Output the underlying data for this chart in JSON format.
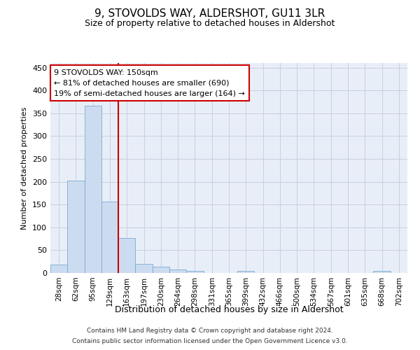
{
  "title": "9, STOVOLDS WAY, ALDERSHOT, GU11 3LR",
  "subtitle": "Size of property relative to detached houses in Aldershot",
  "xlabel": "Distribution of detached houses by size in Aldershot",
  "ylabel": "Number of detached properties",
  "footer_line1": "Contains HM Land Registry data © Crown copyright and database right 2024.",
  "footer_line2": "Contains public sector information licensed under the Open Government Licence v3.0.",
  "bar_labels": [
    "28sqm",
    "62sqm",
    "95sqm",
    "129sqm",
    "163sqm",
    "197sqm",
    "230sqm",
    "264sqm",
    "298sqm",
    "331sqm",
    "365sqm",
    "399sqm",
    "432sqm",
    "466sqm",
    "500sqm",
    "534sqm",
    "567sqm",
    "601sqm",
    "635sqm",
    "668sqm",
    "702sqm"
  ],
  "bar_values": [
    18,
    202,
    367,
    156,
    77,
    20,
    14,
    7,
    5,
    0,
    0,
    4,
    0,
    0,
    0,
    0,
    0,
    0,
    0,
    4,
    0
  ],
  "bar_color": "#ccdcf0",
  "bar_edge_color": "#7aaad0",
  "grid_color": "#c8d0df",
  "background_color": "#e8eef8",
  "vline_color": "#cc0000",
  "annotation_line1": "9 STOVOLDS WAY: 150sqm",
  "annotation_line2": "← 81% of detached houses are smaller (690)",
  "annotation_line3": "19% of semi-detached houses are larger (164) →",
  "annotation_box_color": "#ffffff",
  "annotation_box_edge": "#cc0000",
  "ylim": [
    0,
    460
  ],
  "yticks": [
    0,
    50,
    100,
    150,
    200,
    250,
    300,
    350,
    400,
    450
  ],
  "title_fontsize": 11,
  "subtitle_fontsize": 9,
  "ylabel_fontsize": 8,
  "xlabel_fontsize": 9
}
